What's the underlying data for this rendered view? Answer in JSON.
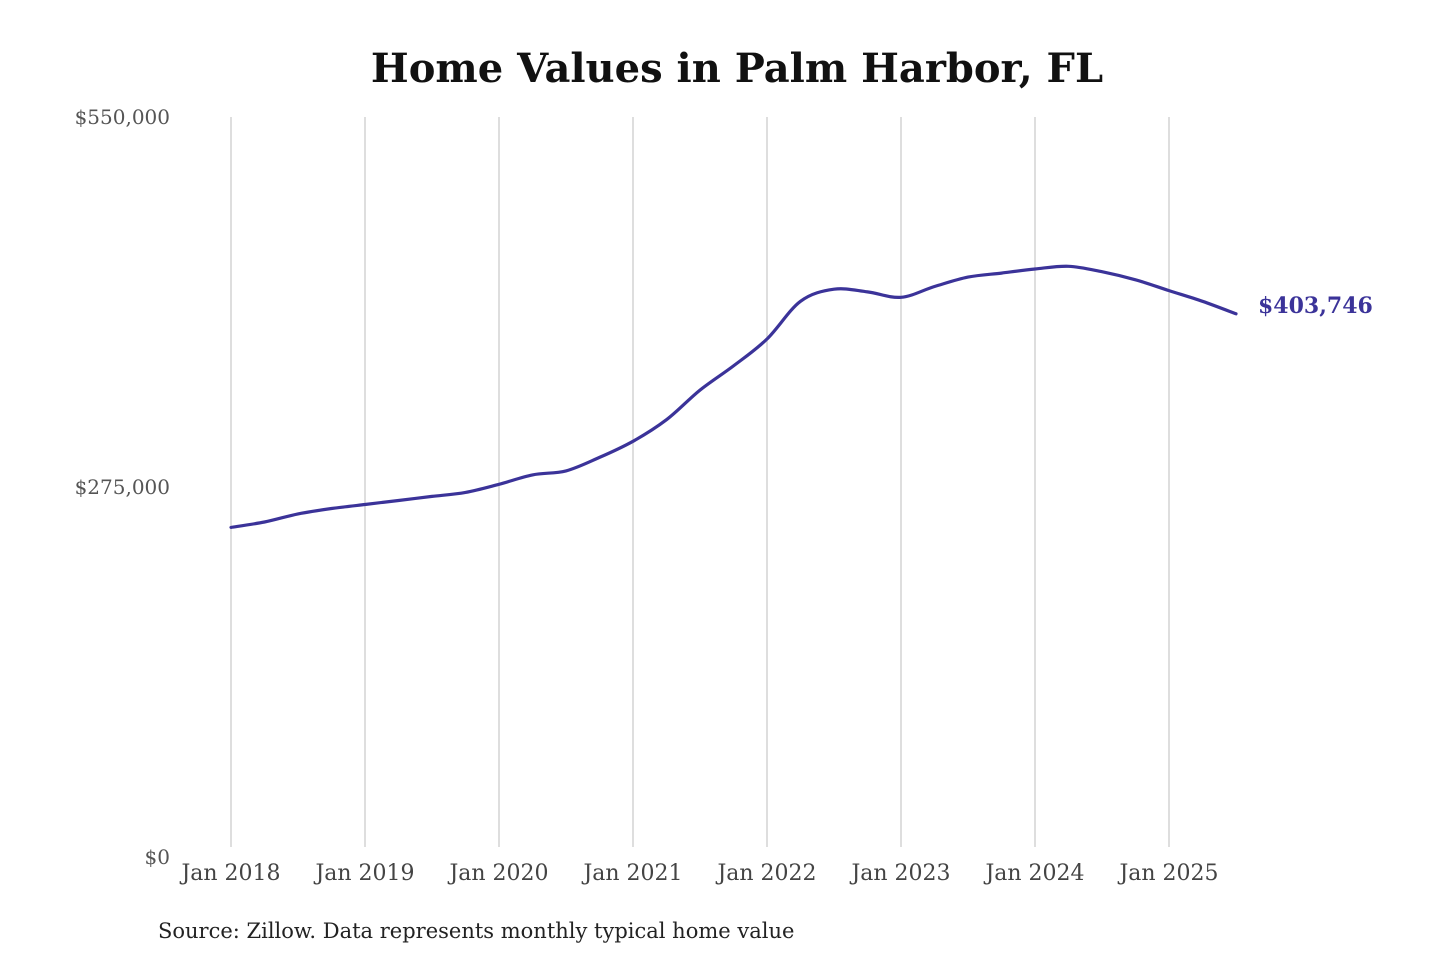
{
  "chart_data": {
    "type": "line",
    "title": "Home Values in Palm Harbor, FL",
    "source": "Source: Zillow. Data represents monthly typical home value",
    "ylim": [
      0,
      550000
    ],
    "y_ticks": [
      {
        "value": 0,
        "label": "$0"
      },
      {
        "value": 275000,
        "label": "$275,000"
      },
      {
        "value": 550000,
        "label": "$550,000"
      }
    ],
    "x_ticks": [
      {
        "value": "2018-01",
        "label": "Jan 2018"
      },
      {
        "value": "2019-01",
        "label": "Jan 2019"
      },
      {
        "value": "2020-01",
        "label": "Jan 2020"
      },
      {
        "value": "2021-01",
        "label": "Jan 2021"
      },
      {
        "value": "2022-01",
        "label": "Jan 2022"
      },
      {
        "value": "2023-01",
        "label": "Jan 2023"
      },
      {
        "value": "2024-01",
        "label": "Jan 2024"
      },
      {
        "value": "2025-01",
        "label": "Jan 2025"
      }
    ],
    "grid": {
      "vertical": true,
      "horizontal": false
    },
    "series": [
      {
        "color": "#3b3399",
        "end_label": "$403,746",
        "x": [
          "2018-01",
          "2018-04",
          "2018-07",
          "2018-10",
          "2019-01",
          "2019-04",
          "2019-07",
          "2019-10",
          "2020-01",
          "2020-04",
          "2020-07",
          "2020-10",
          "2021-01",
          "2021-04",
          "2021-07",
          "2021-10",
          "2022-01",
          "2022-04",
          "2022-07",
          "2022-10",
          "2023-01",
          "2023-04",
          "2023-07",
          "2023-10",
          "2024-01",
          "2024-04",
          "2024-07",
          "2024-10",
          "2025-01",
          "2025-04",
          "2025-07"
        ],
        "values": [
          245000,
          249000,
          255000,
          259000,
          262000,
          265000,
          268000,
          271000,
          277000,
          284000,
          287000,
          297000,
          309000,
          325000,
          347000,
          365000,
          385000,
          413000,
          422000,
          420000,
          416000,
          424000,
          431000,
          434000,
          437000,
          439000,
          435000,
          429000,
          421000,
          413000,
          403746
        ]
      }
    ]
  }
}
